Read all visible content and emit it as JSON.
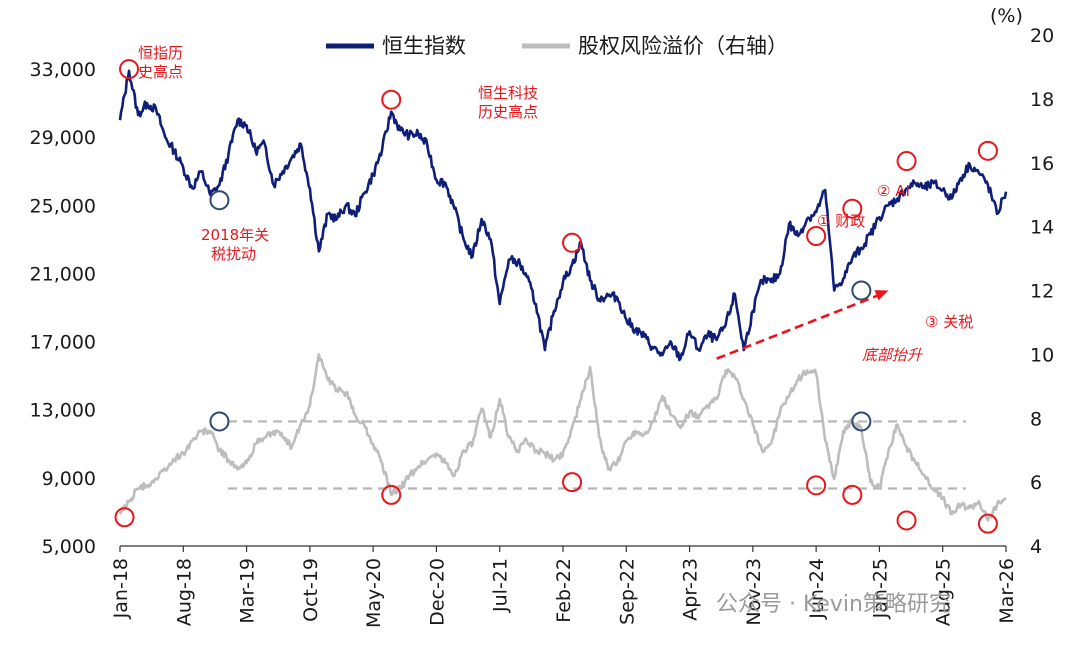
{
  "chart_data": {
    "type": "line",
    "legend": [
      "恒生指数",
      "股权风险溢价（右轴）"
    ],
    "left_axis": {
      "ylim": [
        5000,
        35000
      ],
      "ticks": [
        "5,000",
        "9,000",
        "13,000",
        "17,000",
        "21,000",
        "25,000",
        "29,000",
        "33,000"
      ]
    },
    "right_axis": {
      "unit": "(%)",
      "ylim": [
        4,
        20
      ],
      "ticks": [
        "4",
        "6",
        "8",
        "10",
        "12",
        "14",
        "16",
        "18",
        "20"
      ]
    },
    "x_ticks": [
      "Jan-18",
      "Aug-18",
      "Mar-19",
      "Oct-19",
      "May-20",
      "Dec-20",
      "Jul-21",
      "Feb-22",
      "Sep-22",
      "Apr-23",
      "Nov-23",
      "Jun-24",
      "Jan-25",
      "Aug-25",
      "Mar-26"
    ],
    "x_range": [
      0,
      98
    ],
    "series": [
      {
        "name": "恒生指数",
        "color": "#0f1f78",
        "axis": "left",
        "x": [
          0,
          1,
          2,
          3,
          4,
          5,
          6,
          7,
          8,
          9,
          10,
          11,
          12,
          13,
          14,
          15,
          16,
          17,
          18,
          19,
          20,
          21,
          22,
          23,
          24,
          25,
          26,
          27,
          28,
          29,
          30,
          31,
          32,
          33,
          34,
          35,
          36,
          37,
          38,
          39,
          40,
          41,
          42,
          43,
          44,
          45,
          46,
          47,
          48,
          49,
          50,
          51,
          52,
          53,
          54,
          55,
          56,
          57,
          58,
          59,
          60,
          61,
          62,
          63,
          64,
          65,
          66,
          67,
          68,
          69,
          70,
          71,
          72,
          73,
          74,
          75,
          76,
          77,
          78,
          79,
          80,
          81,
          82,
          83,
          84,
          85,
          86,
          87,
          88,
          89,
          90,
          91,
          92,
          93,
          94,
          95,
          96,
          97,
          98
        ],
        "y": [
          30000,
          32900,
          30300,
          31000,
          30600,
          29000,
          28200,
          27200,
          26000,
          27000,
          25600,
          26200,
          28000,
          30000,
          29700,
          28200,
          28600,
          26200,
          27000,
          27800,
          28600,
          26000,
          22300,
          24500,
          24200,
          25000,
          24400,
          25700,
          26800,
          28300,
          30500,
          29400,
          29100,
          29200,
          28500,
          26500,
          26300,
          24800,
          23000,
          22000,
          24200,
          23000,
          19200,
          21800,
          21700,
          20800,
          19200,
          16500,
          18800,
          20500,
          21500,
          22800,
          20600,
          19500,
          19700,
          19600,
          18300,
          17700,
          17300,
          16600,
          16200,
          16900,
          16000,
          17600,
          16500,
          17400,
          17100,
          18000,
          19800,
          16500,
          18800,
          20600,
          20500,
          21000,
          23900,
          23200,
          24200,
          24600,
          25900,
          20000,
          20700,
          21900,
          22500,
          23300,
          24300,
          25000,
          25400,
          26000,
          26300,
          26000,
          26300,
          25900,
          25400,
          26600,
          27400,
          26900,
          26200,
          24500,
          25800
        ]
      },
      {
        "name": "股权风险溢价（右轴）",
        "color": "#bdbdbd",
        "axis": "right",
        "x": [
          0,
          1,
          2,
          3,
          4,
          5,
          6,
          7,
          8,
          9,
          10,
          11,
          12,
          13,
          14,
          15,
          16,
          17,
          18,
          19,
          20,
          21,
          22,
          23,
          24,
          25,
          26,
          27,
          28,
          29,
          30,
          31,
          32,
          33,
          34,
          35,
          36,
          37,
          38,
          39,
          40,
          41,
          42,
          43,
          44,
          45,
          46,
          47,
          48,
          49,
          50,
          51,
          52,
          53,
          54,
          55,
          56,
          57,
          58,
          59,
          60,
          61,
          62,
          63,
          64,
          65,
          66,
          67,
          68,
          69,
          70,
          71,
          72,
          73,
          74,
          75,
          76,
          77,
          78,
          79,
          80,
          81,
          82,
          83,
          84,
          85,
          86,
          87,
          88,
          89,
          90,
          91,
          92,
          93,
          94,
          95,
          96,
          97,
          98
        ],
        "y": [
          5.0,
          5.4,
          5.8,
          5.9,
          6.1,
          6.4,
          6.7,
          6.9,
          7.3,
          7.6,
          7.6,
          7.0,
          6.7,
          6.4,
          6.6,
          7.2,
          7.4,
          7.6,
          7.4,
          7.1,
          7.8,
          8.4,
          10.0,
          9.2,
          8.9,
          8.8,
          8.1,
          7.8,
          7.2,
          6.6,
          5.6,
          5.8,
          6.2,
          6.5,
          6.7,
          6.9,
          6.6,
          6.2,
          7.0,
          7.2,
          8.3,
          7.4,
          8.6,
          7.4,
          7.0,
          7.3,
          7.0,
          6.9,
          6.7,
          6.9,
          7.7,
          8.6,
          9.6,
          7.4,
          6.4,
          6.6,
          7.3,
          7.6,
          7.5,
          7.9,
          8.7,
          8.1,
          7.7,
          8.2,
          8.0,
          8.4,
          8.6,
          9.5,
          9.3,
          8.6,
          7.8,
          7.0,
          7.2,
          8.2,
          8.7,
          9.2,
          9.5,
          9.4,
          7.3,
          6.1,
          7.6,
          7.9,
          7.7,
          6.0,
          5.8,
          7.0,
          7.8,
          7.1,
          6.6,
          6.2,
          5.8,
          5.5,
          5.0,
          5.3,
          5.2,
          5.4,
          4.8,
          5.3,
          5.5
        ]
      }
    ],
    "reference_lines_right_axis": [
      7.9,
      5.8
    ],
    "annotations": [
      {
        "label": "恒指历",
        "label2": "史高点",
        "x": 1,
        "axis": "left",
        "y": 33000,
        "ring": "red"
      },
      {
        "label": "2018年关",
        "label2": "税扰动",
        "x": 11,
        "axis": "left",
        "y": 25300,
        "ring": "blue"
      },
      {
        "label": "恒生科技",
        "label2": "历史高点",
        "x": 30,
        "axis": "left",
        "y": 31200,
        "ring": "red"
      },
      {
        "label": "",
        "label2": "",
        "x": 50,
        "axis": "left",
        "y": 22800,
        "ring": "red"
      },
      {
        "label": "① 财政",
        "label2": "",
        "x": 77,
        "axis": "left",
        "y": 23200,
        "ring": "red"
      },
      {
        "label": "② AI",
        "label2": "",
        "x": 81,
        "axis": "left",
        "y": 24800,
        "ring": "red"
      },
      {
        "label": "③ 关税",
        "label2": "",
        "x": 82,
        "axis": "left",
        "y": 20000,
        "ring": "blue"
      },
      {
        "label": "",
        "label2": "",
        "x": 87,
        "axis": "left",
        "y": 27600,
        "ring": "red"
      },
      {
        "label": "",
        "label2": "",
        "x": 96,
        "axis": "left",
        "y": 28200,
        "ring": "red"
      },
      {
        "label": "",
        "label2": "",
        "x": 0.5,
        "axis": "right",
        "y": 4.9,
        "ring": "red"
      },
      {
        "label": "",
        "label2": "",
        "x": 11,
        "axis": "right",
        "y": 7.9,
        "ring": "blue"
      },
      {
        "label": "",
        "label2": "",
        "x": 30,
        "axis": "right",
        "y": 5.6,
        "ring": "red"
      },
      {
        "label": "",
        "label2": "",
        "x": 50,
        "axis": "right",
        "y": 6.0,
        "ring": "red"
      },
      {
        "label": "",
        "label2": "",
        "x": 77,
        "axis": "right",
        "y": 5.9,
        "ring": "red"
      },
      {
        "label": "",
        "label2": "",
        "x": 82,
        "axis": "right",
        "y": 7.9,
        "ring": "blue"
      },
      {
        "label": "",
        "label2": "",
        "x": 81,
        "axis": "right",
        "y": 5.6,
        "ring": "red"
      },
      {
        "label": "",
        "label2": "",
        "x": 87,
        "axis": "right",
        "y": 4.8,
        "ring": "red"
      },
      {
        "label": "",
        "label2": "",
        "x": 96,
        "axis": "right",
        "y": 4.7,
        "ring": "red"
      }
    ],
    "trend_label": "底部抬升",
    "trend_from": {
      "x": 66,
      "axis": "left",
      "y": 16000
    },
    "trend_to": {
      "x": 85,
      "axis": "left",
      "y": 20000
    }
  },
  "watermark": "公众号 · Kevin策略研究",
  "colors": {
    "hsi": "#0f1f78",
    "erp": "#bdbdbd",
    "red": "#e8161b",
    "ring_blue": "#2e4a73"
  }
}
